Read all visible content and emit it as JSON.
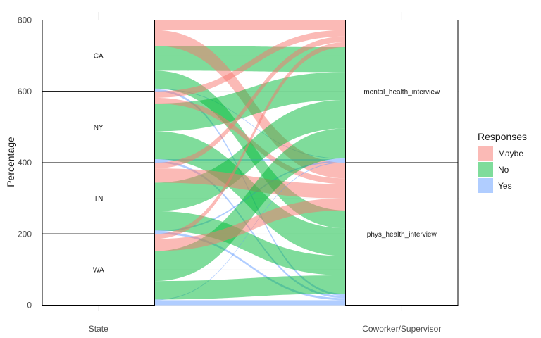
{
  "chart_data": {
    "type": "alluvial",
    "ylabel": "Percentage",
    "ylim": [
      0,
      800
    ],
    "y_ticks": [
      0,
      200,
      400,
      600,
      800
    ],
    "axes": [
      "State",
      "Coworker/Supervisor"
    ],
    "left_strata": [
      "CA",
      "NY",
      "TN",
      "WA"
    ],
    "right_strata": [
      "mental_health_interview",
      "phys_health_interview"
    ],
    "legend": {
      "title": "Responses",
      "entries": [
        {
          "name": "Maybe",
          "color": "#F8766D"
        },
        {
          "name": "No",
          "color": "#00BA38"
        },
        {
          "name": "Yes",
          "color": "#619CFF"
        }
      ]
    },
    "flows": [
      {
        "state": "CA",
        "response": "Yes",
        "target": "mental_health_interview",
        "value": 2
      },
      {
        "state": "CA",
        "response": "No",
        "target": "mental_health_interview",
        "value": 70
      },
      {
        "state": "CA",
        "response": "Maybe",
        "target": "mental_health_interview",
        "value": 28
      },
      {
        "state": "CA",
        "response": "Yes",
        "target": "phys_health_interview",
        "value": 6
      },
      {
        "state": "CA",
        "response": "No",
        "target": "phys_health_interview",
        "value": 50
      },
      {
        "state": "CA",
        "response": "Maybe",
        "target": "phys_health_interview",
        "value": 44
      },
      {
        "state": "NY",
        "response": "Yes",
        "target": "mental_health_interview",
        "value": 4
      },
      {
        "state": "NY",
        "response": "No",
        "target": "mental_health_interview",
        "value": 78
      },
      {
        "state": "NY",
        "response": "Maybe",
        "target": "mental_health_interview",
        "value": 18
      },
      {
        "state": "NY",
        "response": "Yes",
        "target": "phys_health_interview",
        "value": 6
      },
      {
        "state": "NY",
        "response": "No",
        "target": "phys_health_interview",
        "value": 78
      },
      {
        "state": "NY",
        "response": "Maybe",
        "target": "phys_health_interview",
        "value": 16
      },
      {
        "state": "TN",
        "response": "Yes",
        "target": "mental_health_interview",
        "value": 4
      },
      {
        "state": "TN",
        "response": "No",
        "target": "mental_health_interview",
        "value": 80
      },
      {
        "state": "TN",
        "response": "Maybe",
        "target": "mental_health_interview",
        "value": 16
      },
      {
        "state": "TN",
        "response": "Yes",
        "target": "phys_health_interview",
        "value": 6
      },
      {
        "state": "TN",
        "response": "No",
        "target": "phys_health_interview",
        "value": 54
      },
      {
        "state": "TN",
        "response": "Maybe",
        "target": "phys_health_interview",
        "value": 40
      },
      {
        "state": "WA",
        "response": "Yes",
        "target": "mental_health_interview",
        "value": 2
      },
      {
        "state": "WA",
        "response": "No",
        "target": "mental_health_interview",
        "value": 84
      },
      {
        "state": "WA",
        "response": "Maybe",
        "target": "mental_health_interview",
        "value": 14
      },
      {
        "state": "WA",
        "response": "Yes",
        "target": "phys_health_interview",
        "value": 14
      },
      {
        "state": "WA",
        "response": "No",
        "target": "phys_health_interview",
        "value": 52
      },
      {
        "state": "WA",
        "response": "Maybe",
        "target": "phys_health_interview",
        "value": 34
      }
    ]
  }
}
